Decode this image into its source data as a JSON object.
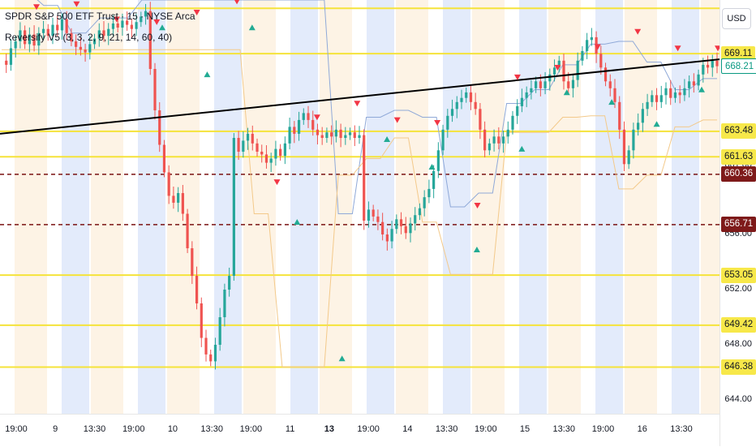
{
  "header": {
    "symbol_title": "SPDR S&P 500 ETF Trust · 15 · NYSE Arca",
    "indicator_title": "Reversify V5 (3, 3, 2, 9, 21, 14, 60, 40)",
    "currency": "USD"
  },
  "colors": {
    "level_line": "#f5e33a",
    "level_label_bg": "#f7e84a",
    "dashed_line": "#7a1212",
    "dashed_label_bg": "#7e1a1a",
    "trend_line": "#000000",
    "bull_candle": "#26a69a",
    "bear_candle": "#ef5350",
    "buy_marker": "#22ab94",
    "sell_marker": "#f23645",
    "upper_band": "#8fa9d8",
    "lower_band": "#f3c98a",
    "session_blue": "#e3ebfb",
    "session_orange": "#fdf0de",
    "current_price": "#089981"
  },
  "chart_data": {
    "type": "candlestick",
    "y_axis": {
      "range": [
        643.0,
        673.0
      ],
      "tick_labels": [
        "644.00",
        "648.00",
        "652.00",
        "656.00",
        "661.00",
        "663.48"
      ]
    },
    "x_axis": {
      "tick_labels": [
        "19:00",
        "9",
        "13:30",
        "19:00",
        "10",
        "13:30",
        "19:00",
        "11",
        "13",
        "19:00",
        "14",
        "13:30",
        "19:00",
        "15",
        "13:30",
        "19:00",
        "16",
        "13:30"
      ]
    },
    "level_labels": [
      "669.11",
      "663.48",
      "661.63",
      "653.05",
      "649.42",
      "646.38"
    ],
    "horizontal_levels": [
      672.4,
      669.11,
      663.48,
      661.63,
      653.05,
      649.42,
      646.38
    ],
    "dashed_levels": [
      660.36,
      656.71
    ],
    "current_price": 668.21,
    "trend_line": {
      "start": 663.3,
      "end": 668.7
    },
    "close_path": [
      668.6,
      668.3,
      669.5,
      670.0,
      670.8,
      669.8,
      670.5,
      669.7,
      670.6,
      670.9,
      670.4,
      671.2,
      670.8,
      671.6,
      670.6,
      670.0,
      669.6,
      669.4,
      669.2,
      669.8,
      670.2,
      670.8,
      670.4,
      670.9,
      671.3,
      671.0,
      671.5,
      671.2,
      670.9,
      671.4,
      671.8,
      672.2,
      668.0,
      665.0,
      662.5,
      660.5,
      658.8,
      658.3,
      659.0,
      657.5,
      655.0,
      653.0,
      651.0,
      648.5,
      647.3,
      646.8,
      648.0,
      650.0,
      652.0,
      653.0,
      663.0,
      662.0,
      662.8,
      663.3,
      662.6,
      662.0,
      661.8,
      661.2,
      661.5,
      662.2,
      661.7,
      662.6,
      663.8,
      663.3,
      664.3,
      664.8,
      664.3,
      663.6,
      663.2,
      663.0,
      663.4,
      663.1,
      663.6,
      663.0,
      663.2,
      663.4,
      663.0,
      663.2,
      657.0,
      657.8,
      657.3,
      656.9,
      656.0,
      655.5,
      656.4,
      657.1,
      656.6,
      656.1,
      656.8,
      657.4,
      657.9,
      658.7,
      659.3,
      660.6,
      662.1,
      663.6,
      664.6,
      665.1,
      665.6,
      665.9,
      666.3,
      665.6,
      665.1,
      663.6,
      662.1,
      662.6,
      663.1,
      662.6,
      663.1,
      663.6,
      664.6,
      665.3,
      665.9,
      666.3,
      666.6,
      667.1,
      666.6,
      667.1,
      667.6,
      668.1,
      668.6,
      667.1,
      666.6,
      667.2,
      668.6,
      669.3,
      670.1,
      670.3,
      669.1,
      668.1,
      667.1,
      666.6,
      665.6,
      663.6,
      661.1,
      662.1,
      663.6,
      664.1,
      665.1,
      665.6,
      666.1,
      665.6,
      666.1,
      666.6,
      665.9,
      666.3,
      666.1,
      666.6,
      667.1,
      666.8,
      667.6,
      668.3,
      668.1,
      668.6,
      668.2
    ],
    "sell_signal_levels": [
      672.4,
      672.6,
      671.5,
      671.3,
      672.0,
      672.8,
      659.7,
      664.4,
      665.4,
      664.2,
      664.0,
      658.0,
      667.3,
      668.0,
      669.5,
      670.6,
      669.4,
      669.4
    ],
    "buy_signal_levels": [
      671.1,
      667.7,
      671.1,
      657.0,
      647.1,
      663.0,
      661.0,
      655.0,
      662.3,
      666.4,
      665.7,
      664.1,
      666.6
    ],
    "upper_band_path": [
      673.5,
      673.5,
      673.5,
      672.6,
      672.6,
      670.6,
      670.6,
      671.7,
      671.7,
      671.7,
      673.0,
      673.0,
      673.0,
      673.0,
      673.0,
      673.0,
      673.0,
      673.0,
      673.0,
      673.0,
      673.0,
      673.0,
      673.0,
      673.0,
      657.5,
      657.5,
      664.5,
      664.5,
      665.0,
      665.0,
      664.5,
      664.5,
      658.0,
      658.0,
      659.0,
      659.0,
      665.5,
      665.5,
      666.5,
      666.5,
      668.3,
      668.3,
      669.8,
      669.8,
      670.0,
      670.0,
      668.5,
      668.5,
      666.5,
      666.5,
      667.3,
      667.3
    ],
    "lower_band_path": [
      669.4,
      669.4,
      669.4,
      669.4,
      669.4,
      669.4,
      669.4,
      669.4,
      669.4,
      669.4,
      669.4,
      669.4,
      669.4,
      669.4,
      669.4,
      669.4,
      669.4,
      669.4,
      657.5,
      657.5,
      646.4,
      646.4,
      646.4,
      646.4,
      660.3,
      660.3,
      661.5,
      661.5,
      663.0,
      663.0,
      656.9,
      656.9,
      653.1,
      653.1,
      653.1,
      653.1,
      663.4,
      663.4,
      663.4,
      663.4,
      664.5,
      664.5,
      664.6,
      664.6,
      659.3,
      659.3,
      660.3,
      660.3,
      663.8,
      663.8,
      664.3,
      664.3
    ]
  }
}
